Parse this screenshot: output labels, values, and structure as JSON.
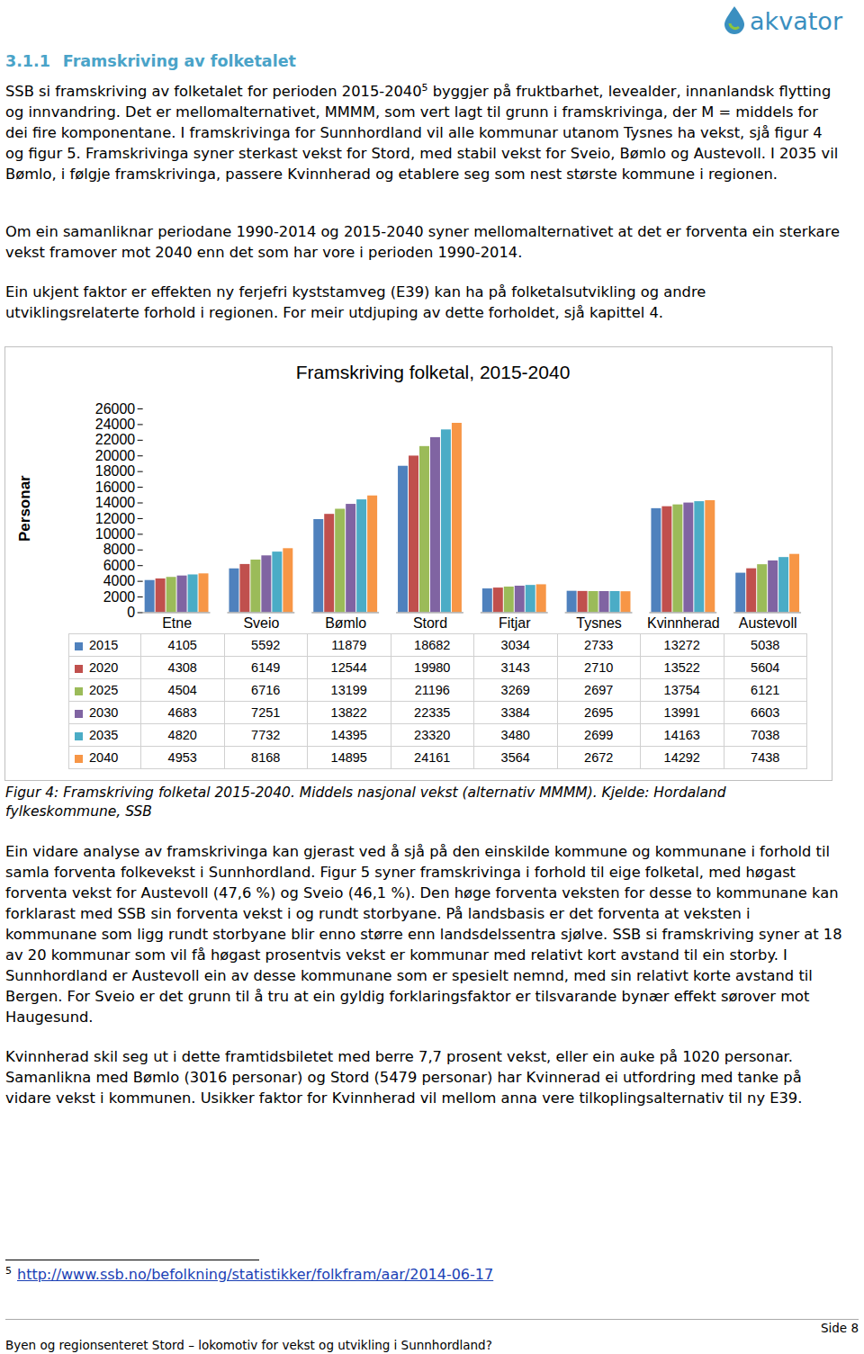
{
  "logo": "akvator",
  "heading": {
    "number": "3.1.1",
    "title": "Framskriving av folketalet"
  },
  "paragraphs": [
    {
      "text_before": "SSB si framskriving av folketalet for perioden 2015-2040",
      "footnote_ref": "5",
      "text_after": " byggjer på fruktbarhet, levealder, innanlandsk flytting og innvandring. Det er mellomalternativet, MMMM, som vert lagt til grunn i framskrivinga, der M = middels for dei fire komponentane. I framskrivinga for Sunnhordland vil alle kommunar utanom Tysnes ha vekst, sjå figur 4 og figur 5. Framskrivinga syner sterkast vekst for Stord, med stabil vekst for Sveio, Bømlo og Austevoll. I 2035 vil Bømlo, i følgje framskrivinga, passere Kvinnherad og etablere seg som nest største kommune i regionen."
    },
    {
      "text_before": "Om ein samanliknar periodane 1990-2014 og 2015-2040 syner mellomalternativet at det er forventa ein sterkare vekst framover mot 2040 enn det som har vore i perioden 1990-2014."
    },
    {
      "text_before": "Ein ukjent faktor er effekten ny ferjefri kyststamveg (E39) kan ha på folketalsutvikling og andre utviklingsrelaterte forhold i regionen. For meir utdjuping av dette forholdet, sjå kapittel 4."
    }
  ],
  "chart_data": {
    "type": "bar",
    "title": "Framskriving folketal, 2015-2040",
    "y_label": "Personar",
    "categories": [
      "Etne",
      "Sveio",
      "Bømlo",
      "Stord",
      "Fitjar",
      "Tysnes",
      "Kvinnherad",
      "Austevoll"
    ],
    "series": [
      {
        "name": "2015",
        "color": "#4f81bd",
        "values": [
          4105,
          5592,
          11879,
          18682,
          3034,
          2733,
          13272,
          5038
        ]
      },
      {
        "name": "2020",
        "color": "#c0504d",
        "values": [
          4308,
          6149,
          12544,
          19980,
          3143,
          2710,
          13522,
          5604
        ]
      },
      {
        "name": "2025",
        "color": "#9bbb59",
        "values": [
          4504,
          6716,
          13199,
          21196,
          3269,
          2697,
          13754,
          6121
        ]
      },
      {
        "name": "2030",
        "color": "#8064a2",
        "values": [
          4683,
          7251,
          13822,
          22335,
          3384,
          2695,
          13991,
          6603
        ]
      },
      {
        "name": "2035",
        "color": "#4bacc6",
        "values": [
          4820,
          7732,
          14395,
          23320,
          3480,
          2699,
          14163,
          7038
        ]
      },
      {
        "name": "2040",
        "color": "#f79646",
        "values": [
          4953,
          8168,
          14895,
          24161,
          3564,
          2672,
          14292,
          7438
        ]
      }
    ],
    "ylim": [
      0,
      26000
    ],
    "yticks": [
      0,
      2000,
      4000,
      6000,
      8000,
      10000,
      12000,
      14000,
      16000,
      18000,
      20000,
      22000,
      24000,
      26000
    ],
    "grid": false,
    "legend": "bottom"
  },
  "caption": "Figur 4: Framskriving folketal 2015-2040. Middels nasjonal vekst (alternativ MMMM). Kjelde: Hordaland fylkeskommune, SSB",
  "paragraphs_after": [
    "Ein vidare analyse av framskrivinga kan gjerast ved å sjå på den einskilde kommune og kommunane i forhold til samla forventa folkevekst i Sunnhordland. Figur 5 syner framskrivinga i forhold til eige folketal, med høgast forventa vekst for Austevoll (47,6 %) og Sveio (46,1 %). Den høge forventa veksten for desse to kommunane kan forklarast med SSB sin forventa vekst i og rundt storbyane. På landsbasis er det forventa at veksten i kommunane som ligg rundt storbyane blir enno større enn landsdelssentra sjølve. SSB si framskriving syner at 18 av 20 kommunar som vil få høgast prosentvis vekst er kommunar med relativt kort avstand til ein storby. I Sunnhordland er Austevoll ein av desse kommunane som er spesielt nemnd, med sin relativt korte avstand til Bergen. For Sveio er det grunn til å tru at ein gyldig forklaringsfaktor er tilsvarande bynær effekt sørover mot Haugesund.",
    "Kvinnherad skil seg ut i dette framtidsbiletet med berre 7,7 prosent vekst, eller ein auke på 1020 personar. Samanlikna med Bømlo (3016 personar) og Stord (5479 personar) har Kvinnerad ei utfordring med tanke på vidare vekst i kommunen. Usikker faktor for Kvinnherad vil mellom anna vere tilkoplingsalternativ til ny E39."
  ],
  "footnote": {
    "number": "5",
    "link": "http://www.ssb.no/befolkning/statistikker/folkfram/aar/2014-06-17"
  },
  "footer": {
    "left": "Byen og regionsenteret Stord – lokomotiv for vekst og utvikling i Sunnhordland?",
    "right": "Side 8"
  }
}
